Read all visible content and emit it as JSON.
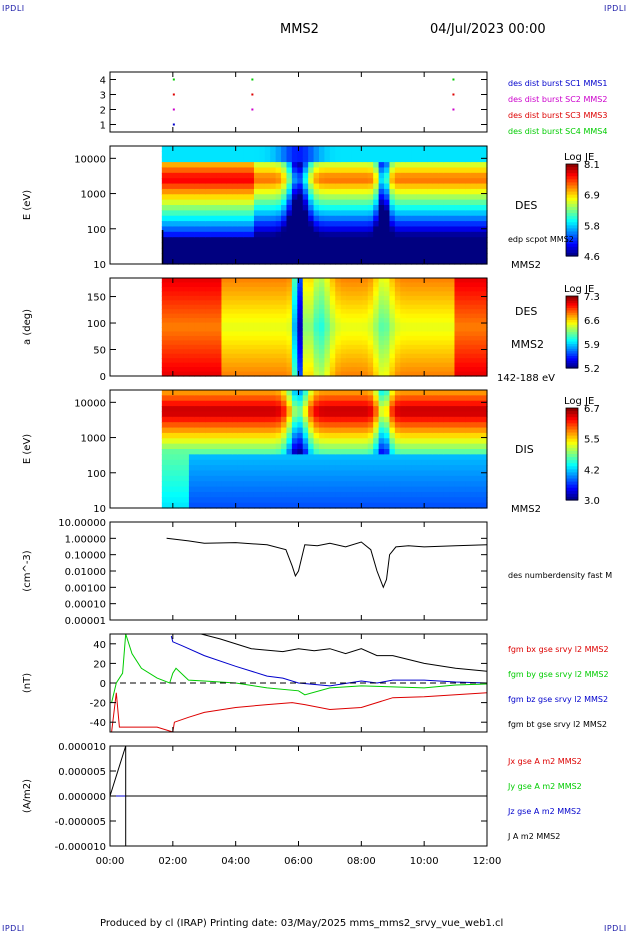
{
  "header": {
    "corner_tl": "IPDLI",
    "corner_tr": "IPDLI",
    "corner_bl": "IPDLI",
    "corner_br": "IPDLI",
    "title": "MMS2",
    "date": "04/Jul/2023 00:00"
  },
  "footer": {
    "text": "Produced by cl (IRAP)   Printing date: 03/May/2025   mms_mms2_srvy_vue_web1.cl"
  },
  "colors": {
    "mms1": "#0000cc",
    "mms2": "#cc00cc",
    "mms3": "#dd0000",
    "mms4": "#00cc00",
    "bx": "#dd0000",
    "by": "#00cc00",
    "bz": "#0000cc",
    "bt": "#000000"
  },
  "chart_data": [
    {
      "type": "scatter",
      "ylim": [
        0.5,
        4.5
      ],
      "yticks": [
        "1",
        "2",
        "3",
        "4"
      ],
      "legend": [
        {
          "label": "des dist burst SC1 MMS1",
          "color": "#0000cc"
        },
        {
          "label": "des dist burst SC2 MMS2",
          "color": "#cc00cc"
        },
        {
          "label": "des dist burst SC3 MMS3",
          "color": "#dd0000"
        },
        {
          "label": "des dist burst SC4 MMS4",
          "color": "#00cc00"
        }
      ],
      "bursts_hours": [
        2.0,
        4.5,
        10.9
      ]
    },
    {
      "type": "heatmap",
      "ylabel": "E (eV)",
      "yscale": "log",
      "yticks": [
        "10",
        "100",
        "1000",
        "10000"
      ],
      "label_right": "DES",
      "label_right2": "edp scpot MMS2",
      "label_bottom": "MMS2",
      "colorbar": {
        "title": "Log JE",
        "ticks": [
          "8.1",
          "6.9",
          "5.8",
          "4.6"
        ]
      }
    },
    {
      "type": "heatmap",
      "ylabel": "a (deg)",
      "yticks": [
        "0",
        "50",
        "100",
        "150"
      ],
      "label_right": "DES",
      "label_right2": "MMS2",
      "label_bottom": "142-188 eV",
      "colorbar": {
        "title": "Log JE",
        "ticks": [
          "7.3",
          "6.6",
          "5.9",
          "5.2"
        ]
      }
    },
    {
      "type": "heatmap",
      "ylabel": "E (eV)",
      "yscale": "log",
      "yticks": [
        "10",
        "100",
        "1000",
        "10000"
      ],
      "label_right": "DIS",
      "label_bottom": "MMS2",
      "colorbar": {
        "title": "Log JE",
        "ticks": [
          "6.7",
          "5.5",
          "4.2",
          "3.0"
        ]
      }
    },
    {
      "type": "line",
      "ylabel": "(cm^-3)",
      "yscale": "log",
      "yticks": [
        "10.00000",
        "1.00000",
        "0.10000",
        "0.01000",
        "0.00100",
        "0.00010",
        "0.00001"
      ],
      "series": [
        {
          "name": "des numberdensity fast M",
          "x": [
            1.8,
            2.5,
            3.0,
            4.0,
            5.0,
            5.6,
            5.8,
            5.9,
            6.0,
            6.2,
            6.6,
            7.0,
            7.5,
            8.0,
            8.3,
            8.5,
            8.7,
            8.8,
            8.9,
            9.1,
            9.5,
            10.0,
            11.0,
            12.0
          ],
          "y": [
            1.0,
            0.7,
            0.5,
            0.55,
            0.4,
            0.2,
            0.02,
            0.005,
            0.01,
            0.4,
            0.35,
            0.5,
            0.3,
            0.6,
            0.2,
            0.01,
            0.001,
            0.003,
            0.1,
            0.3,
            0.35,
            0.3,
            0.35,
            0.4
          ]
        }
      ]
    },
    {
      "type": "line",
      "ylabel": "(nT)",
      "yticks": [
        "40",
        "20",
        "0",
        "-20",
        "-40"
      ],
      "ylim": [
        -50,
        50
      ],
      "series": [
        {
          "name": "fgm bx gse srvy l2 MMS2",
          "x": [
            0.05,
            0.2,
            0.3,
            1.5,
            2.0,
            2.05,
            2.5,
            3.0,
            4.0,
            5.0,
            5.8,
            6.2,
            7.0,
            8.0,
            9.0,
            10.0,
            11.0,
            12.0
          ],
          "y": [
            -50,
            -10,
            -45,
            -45,
            -50,
            -40,
            -35,
            -30,
            -25,
            -22,
            -20,
            -22,
            -27,
            -25,
            -15,
            -14,
            -12,
            -10
          ]
        },
        {
          "name": "fgm by gse srvy l2 MMS2",
          "x": [
            0.05,
            0.2,
            0.4,
            0.5,
            0.7,
            1.0,
            1.5,
            1.9,
            2.0,
            2.1,
            2.5,
            3.0,
            4.0,
            5.0,
            6.0,
            6.2,
            7.0,
            8.0,
            9.0,
            10.0,
            11.0,
            12.0
          ],
          "y": [
            -20,
            0,
            10,
            50,
            30,
            15,
            5,
            0,
            10,
            15,
            3,
            2,
            0,
            -5,
            -8,
            -12,
            -5,
            -3,
            -4,
            -5,
            -2,
            -1
          ]
        },
        {
          "name": "fgm bz gse srvy l2 MMS2",
          "x": [
            1.95,
            2.0,
            2.3,
            3.0,
            4.0,
            5.0,
            5.5,
            6.0,
            7.0,
            8.0,
            8.5,
            9.0,
            10.0,
            11.0,
            12.0
          ],
          "y": [
            48,
            42,
            38,
            28,
            17,
            7,
            5,
            0,
            -3,
            2,
            0,
            3,
            3,
            1,
            0
          ]
        },
        {
          "name": "fgm bt gse srvy l2 MMS2",
          "x": [
            2.9,
            3.5,
            4.5,
            5.5,
            6.0,
            6.5,
            7.0,
            7.5,
            8.0,
            8.5,
            9.0,
            9.5,
            10.0,
            11.0,
            12.0
          ],
          "y": [
            50,
            45,
            35,
            32,
            35,
            33,
            35,
            30,
            35,
            28,
            28,
            24,
            20,
            15,
            12
          ]
        }
      ]
    },
    {
      "type": "line",
      "ylabel": "(A/m2)",
      "yticks": [
        "0.000010",
        "0.000005",
        "0.000000",
        "-0.000005",
        "-0.000010"
      ],
      "ylim": [
        -1e-05,
        1e-05
      ],
      "series": [
        {
          "name": "Jx gse A m2 MMS2",
          "x": [
            0,
            12
          ],
          "y": [
            0,
            0
          ]
        },
        {
          "name": "Jy gse A m2 MMS2",
          "x": [
            0,
            12
          ],
          "y": [
            0,
            0
          ]
        },
        {
          "name": "Jz gse A m2 MMS2",
          "x": [
            0,
            12
          ],
          "y": [
            0,
            0
          ]
        },
        {
          "name": "J A m2 MMS2",
          "x": [
            0,
            0.5,
            0.5,
            0.5,
            12
          ],
          "y": [
            0,
            1e-05,
            -1e-05,
            0,
            0
          ]
        }
      ]
    }
  ],
  "xaxis": {
    "ticks": [
      "00:00",
      "02:00",
      "04:00",
      "06:00",
      "08:00",
      "10:00",
      "12:00"
    ],
    "xlim": [
      0,
      12
    ]
  }
}
